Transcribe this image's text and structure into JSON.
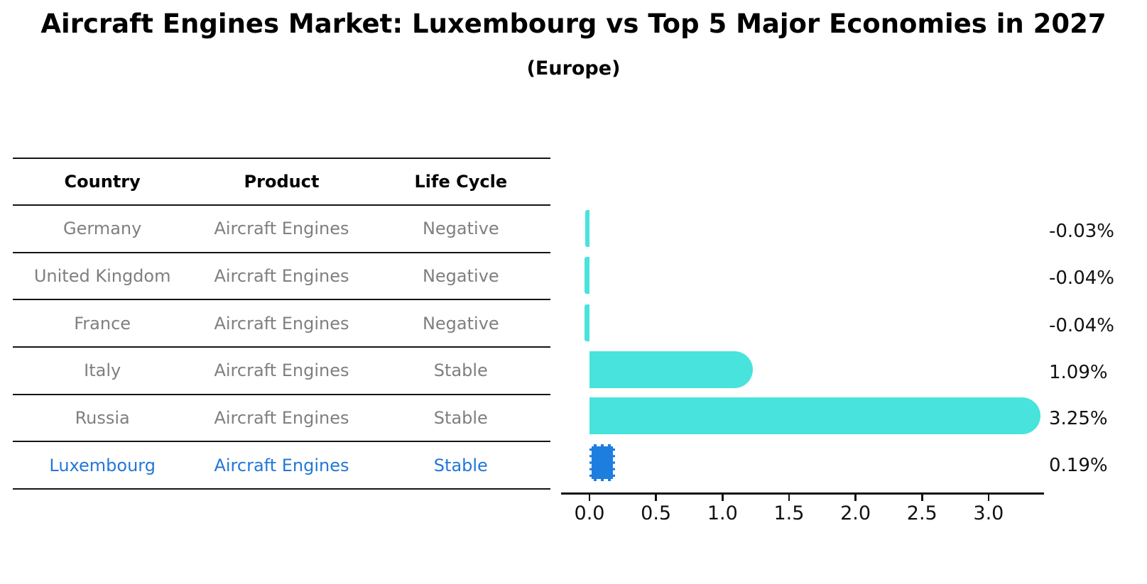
{
  "title": "Aircraft Engines Market: Luxembourg vs Top 5 Major Economies in 2027",
  "subtitle": "(Europe)",
  "table": {
    "headers": [
      "Country",
      "Product",
      "Life Cycle"
    ],
    "rows": [
      {
        "country": "Germany",
        "product": "Aircraft Engines",
        "life_cycle": "Negative",
        "highlight": false
      },
      {
        "country": "United Kingdom",
        "product": "Aircraft Engines",
        "life_cycle": "Negative",
        "highlight": false
      },
      {
        "country": "France",
        "product": "Aircraft Engines",
        "life_cycle": "Negative",
        "highlight": false
      },
      {
        "country": "Italy",
        "product": "Aircraft Engines",
        "life_cycle": "Stable",
        "highlight": false
      },
      {
        "country": "Russia",
        "product": "Aircraft Engines",
        "life_cycle": "Stable",
        "highlight": false
      },
      {
        "country": "Luxembourg",
        "product": "Aircraft Engines",
        "life_cycle": "Stable",
        "highlight": true
      }
    ]
  },
  "chart_data": {
    "type": "bar",
    "orientation": "horizontal",
    "title": "Aircraft Engines Market: Luxembourg vs Top 5 Major Economies in 2027",
    "subtitle": "(Europe)",
    "categories": [
      "Germany",
      "United Kingdom",
      "France",
      "Italy",
      "Russia",
      "Luxembourg"
    ],
    "values": [
      -0.03,
      -0.04,
      -0.04,
      1.09,
      3.25,
      0.19
    ],
    "value_labels": [
      "-0.03%",
      "-0.04%",
      "-0.04%",
      "1.09%",
      "3.25%",
      "0.19%"
    ],
    "highlight_index": 5,
    "xlabel": "",
    "ylabel": "",
    "xlim": [
      -0.21,
      3.42
    ],
    "x_tick_values": [
      0.0,
      0.5,
      1.0,
      1.5,
      2.0,
      2.5,
      3.0
    ],
    "x_tick_labels": [
      "0.0",
      "0.5",
      "1.0",
      "1.5",
      "2.0",
      "2.5",
      "3.0"
    ],
    "grid": false,
    "legend": false,
    "colors": {
      "bar": "#48e3dd",
      "highlight_bar": "#1e7ee0",
      "highlight_text": "#2277d8",
      "table_text": "#7f7f7f",
      "header_text": "#000000",
      "axis_text": "#111111"
    }
  }
}
